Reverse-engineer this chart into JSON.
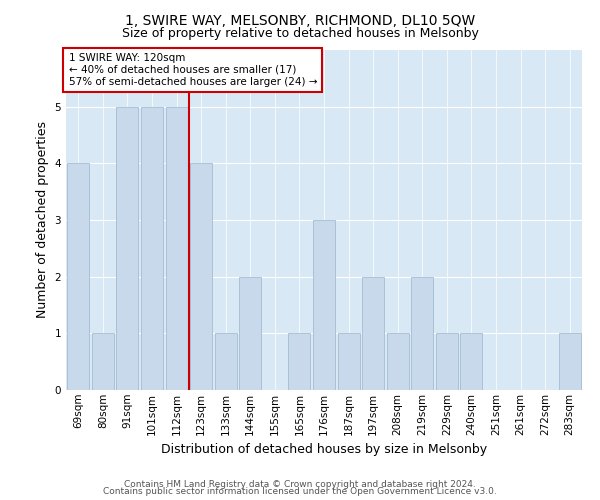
{
  "title_line1": "1, SWIRE WAY, MELSONBY, RICHMOND, DL10 5QW",
  "title_line2": "Size of property relative to detached houses in Melsonby",
  "xlabel": "Distribution of detached houses by size in Melsonby",
  "ylabel": "Number of detached properties",
  "categories": [
    "69sqm",
    "80sqm",
    "91sqm",
    "101sqm",
    "112sqm",
    "123sqm",
    "133sqm",
    "144sqm",
    "155sqm",
    "165sqm",
    "176sqm",
    "187sqm",
    "197sqm",
    "208sqm",
    "219sqm",
    "229sqm",
    "240sqm",
    "251sqm",
    "261sqm",
    "272sqm",
    "283sqm"
  ],
  "values": [
    4,
    1,
    5,
    5,
    5,
    4,
    1,
    2,
    0,
    1,
    3,
    1,
    2,
    1,
    2,
    1,
    1,
    0,
    0,
    0,
    1
  ],
  "bar_color": "#c8d9ec",
  "bar_edge_color": "#9ab4cc",
  "vline_x": 4.5,
  "vline_color": "#cc0000",
  "annotation_text": "1 SWIRE WAY: 120sqm\n← 40% of detached houses are smaller (17)\n57% of semi-detached houses are larger (24) →",
  "annotation_box_color": "#ffffff",
  "annotation_box_edge_color": "#cc0000",
  "ylim": [
    0,
    6
  ],
  "yticks": [
    0,
    1,
    2,
    3,
    4,
    5,
    6
  ],
  "footer_line1": "Contains HM Land Registry data © Crown copyright and database right 2024.",
  "footer_line2": "Contains public sector information licensed under the Open Government Licence v3.0.",
  "plot_bg_color": "#d9e8f5",
  "title1_fontsize": 10,
  "title2_fontsize": 9,
  "ylabel_fontsize": 9,
  "xlabel_fontsize": 9,
  "tick_fontsize": 7.5,
  "annot_fontsize": 7.5,
  "footer_fontsize": 6.5
}
